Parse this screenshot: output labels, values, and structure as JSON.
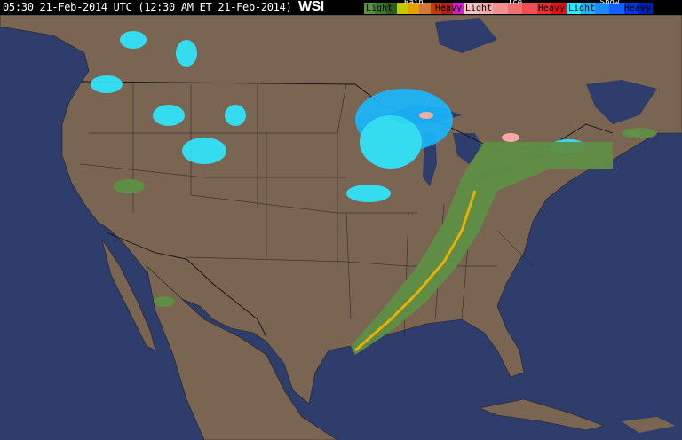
{
  "header": {
    "timestamp": "05:30 21-Feb-2014 UTC (12:30 AM ET 21-Feb-2014)",
    "logo": "WSI"
  },
  "legend": {
    "groups": [
      {
        "title": "Rain",
        "light": "Light",
        "heavy": "Heavy",
        "colors": [
          "#5f8f46",
          "#3e7a2e",
          "#2a5e1e",
          "#c8c800",
          "#e8a000",
          "#d27a36",
          "#c83c00",
          "#b02020",
          "#d020d0"
        ]
      },
      {
        "title": "Ice",
        "light": "Light",
        "heavy": "Heavy",
        "colors": [
          "#f7c4c4",
          "#f5aaaa",
          "#f09090",
          "#ee7070",
          "#ec5050",
          "#e83030",
          "#e81010"
        ]
      },
      {
        "title": "Snow",
        "light": "Light",
        "heavy": "Heavy",
        "colors": [
          "#2ee8ff",
          "#18b8ff",
          "#1a8cff",
          "#1060ff",
          "#0838e0",
          "#0020b0"
        ]
      }
    ]
  },
  "colors": {
    "land": "#7a6452",
    "water": "#2e3d6b",
    "borders": "#1a1a1a"
  }
}
